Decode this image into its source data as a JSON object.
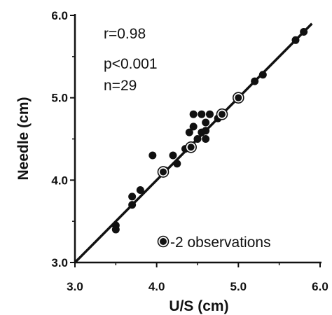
{
  "chart_data": {
    "type": "scatter",
    "xlabel": "U/S (cm)",
    "ylabel": "Needle (cm)",
    "xlim": [
      3.0,
      6.0
    ],
    "ylim": [
      3.0,
      6.0
    ],
    "xticks": [
      "3.0",
      "4.0",
      "5.0",
      "6.0"
    ],
    "yticks": [
      "3.0",
      "4.0",
      "5.0",
      "6.0"
    ],
    "annotations": [
      "r=0.98",
      "p<0.001",
      "n=29"
    ],
    "legend_label": "-2 observations",
    "grid": false,
    "regression_line": {
      "x": [
        3.0,
        5.9
      ],
      "y": [
        3.0,
        5.9
      ]
    },
    "series": [
      {
        "marker": "filled-circle",
        "points": [
          [
            3.5,
            3.45
          ],
          [
            3.5,
            3.4
          ],
          [
            3.7,
            3.8
          ],
          [
            3.7,
            3.7
          ],
          [
            3.8,
            3.88
          ],
          [
            3.95,
            4.3
          ],
          [
            4.1,
            4.12
          ],
          [
            4.2,
            4.3
          ],
          [
            4.25,
            4.2
          ],
          [
            4.35,
            4.38
          ],
          [
            4.4,
            4.58
          ],
          [
            4.45,
            4.65
          ],
          [
            4.45,
            4.8
          ],
          [
            4.5,
            4.5
          ],
          [
            4.55,
            4.8
          ],
          [
            4.55,
            4.58
          ],
          [
            4.6,
            4.7
          ],
          [
            4.6,
            4.6
          ],
          [
            4.6,
            4.5
          ],
          [
            4.65,
            4.8
          ],
          [
            4.75,
            4.75
          ],
          [
            5.0,
            5.0
          ],
          [
            5.2,
            5.2
          ],
          [
            5.3,
            5.28
          ],
          [
            5.7,
            5.7
          ],
          [
            5.8,
            5.8
          ]
        ]
      },
      {
        "marker": "ringed-circle",
        "points": [
          [
            4.08,
            4.1
          ],
          [
            4.42,
            4.4
          ],
          [
            4.8,
            4.8
          ],
          [
            5.0,
            5.0
          ]
        ]
      }
    ]
  }
}
